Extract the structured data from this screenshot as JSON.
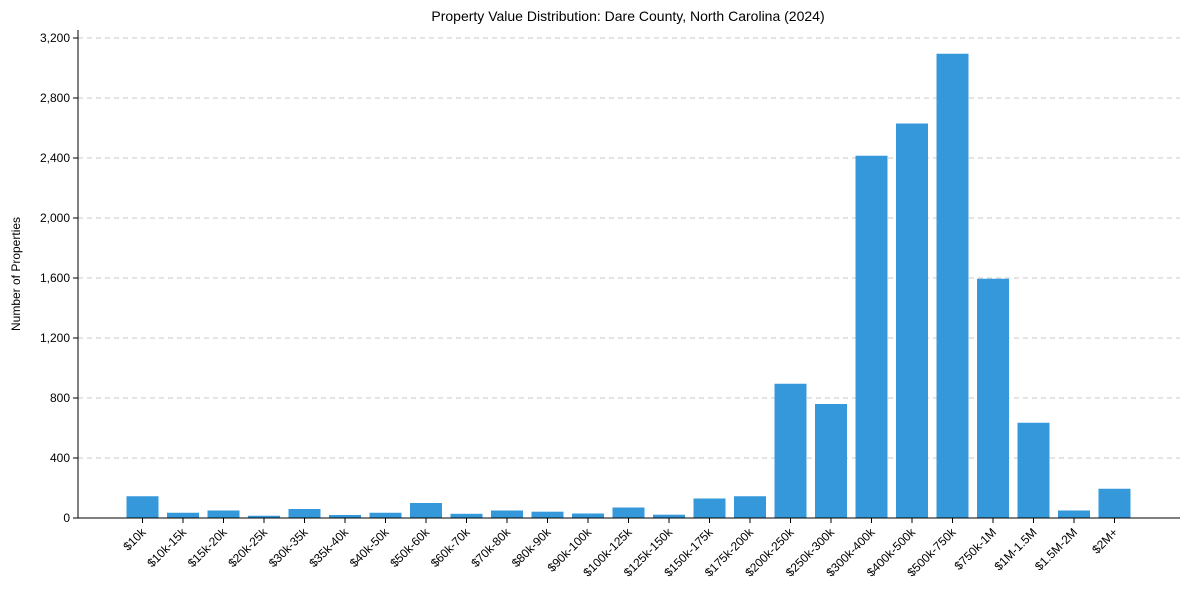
{
  "chart_data": {
    "type": "bar",
    "title": "Property Value Distribution: Dare County, North Carolina (2024)",
    "xlabel": "",
    "ylabel": "Number of Properties",
    "ylim": [
      0,
      3300
    ],
    "yticks": [
      0,
      400,
      800,
      1200,
      1600,
      2000,
      2400,
      2800,
      3200
    ],
    "ytick_labels": [
      "0",
      "400",
      "800",
      "1,200",
      "1,600",
      "2,000",
      "2,400",
      "2,800",
      "3,200"
    ],
    "grid": "y",
    "bar_color": "#3498db",
    "categories": [
      "$10k",
      "$10k-15k",
      "$15k-20k",
      "$20k-25k",
      "$30k-35k",
      "$35k-40k",
      "$40k-50k",
      "$50k-60k",
      "$60k-70k",
      "$70k-80k",
      "$80k-90k",
      "$90k-100k",
      "$100k-125k",
      "$125k-150k",
      "$150k-175k",
      "$175k-200k",
      "$200k-250k",
      "$250k-300k",
      "$300k-400k",
      "$400k-500k",
      "$500k-750k",
      "$750k-1M",
      "$1M-1.5M",
      "$1.5M-2M",
      "$2M+"
    ],
    "values": [
      145,
      35,
      50,
      15,
      60,
      20,
      35,
      100,
      28,
      50,
      42,
      30,
      70,
      22,
      130,
      145,
      895,
      760,
      2415,
      2630,
      3095,
      1595,
      635,
      50,
      195
    ]
  }
}
